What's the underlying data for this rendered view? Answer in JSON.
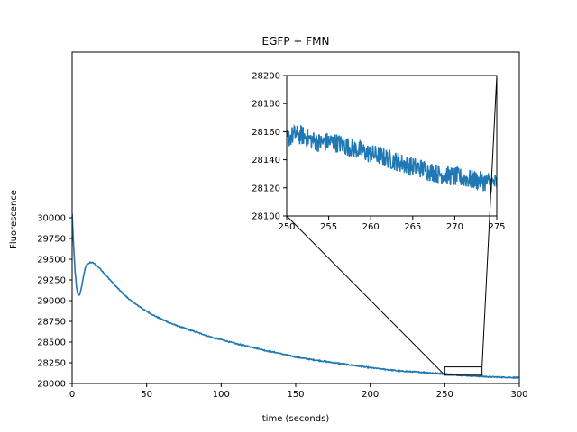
{
  "chart_data": [
    {
      "type": "line",
      "title": "EGFP + FMN",
      "xlabel": "time (seconds)",
      "ylabel": "Fluorescence",
      "xlim": [
        0,
        300
      ],
      "ylim": [
        28000,
        32000
      ],
      "xticks": [
        0,
        50,
        100,
        150,
        200,
        250,
        300
      ],
      "yticks": [
        28000,
        28250,
        28500,
        28750,
        29000,
        29250,
        29500,
        29750,
        30000
      ],
      "grid": false,
      "color": "#1f77b4",
      "series": [
        {
          "x": [
            0,
            1,
            2,
            3,
            4,
            5,
            6,
            7,
            8,
            9,
            10,
            11,
            12,
            13,
            14,
            15,
            16,
            18,
            20,
            22,
            25,
            28,
            30,
            35,
            40,
            45,
            50,
            55,
            60,
            65,
            70,
            75,
            80,
            85,
            90,
            95,
            100,
            105,
            110,
            115,
            120,
            125,
            128,
            130,
            135,
            140,
            145,
            150,
            160,
            170,
            180,
            190,
            200,
            210,
            220,
            230,
            240,
            250,
            260,
            270,
            280,
            290,
            300
          ],
          "y": [
            30050,
            29650,
            29350,
            29150,
            29070,
            29075,
            29130,
            29230,
            29330,
            29400,
            29435,
            29450,
            29458,
            29460,
            29455,
            29445,
            29430,
            29400,
            29360,
            29320,
            29260,
            29200,
            29160,
            29070,
            28990,
            28930,
            28870,
            28820,
            28775,
            28735,
            28700,
            28670,
            28640,
            28610,
            28580,
            28550,
            28530,
            28505,
            28480,
            28460,
            28440,
            28420,
            28405,
            28395,
            28380,
            28360,
            28340,
            28320,
            28290,
            28265,
            28240,
            28215,
            28190,
            28170,
            28150,
            28140,
            28130,
            28115,
            28100,
            28090,
            28080,
            28075,
            28070
          ]
        }
      ]
    },
    {
      "type": "line",
      "title": "",
      "xlabel": "",
      "ylabel": "",
      "xlim": [
        250,
        275
      ],
      "ylim": [
        28100,
        28200
      ],
      "xticks": [
        250,
        255,
        260,
        265,
        270,
        275
      ],
      "yticks": [
        28100,
        28120,
        28140,
        28160,
        28180,
        28200
      ],
      "grid": false,
      "color": "#1f77b4",
      "series": [
        {
          "x": [
            250,
            251,
            252,
            253,
            254,
            255,
            256,
            257,
            258,
            259,
            260,
            261,
            262,
            263,
            264,
            265,
            266,
            267,
            268,
            269,
            270,
            271,
            272,
            273,
            274,
            275
          ],
          "y": [
            28155,
            28158,
            28157,
            28154,
            28152,
            28153,
            28152,
            28150,
            28148,
            28146,
            28144,
            28143,
            28141,
            28139,
            28137,
            28135,
            28134,
            28132,
            28130,
            28129,
            28128,
            28127,
            28126,
            28125,
            28124,
            28123
          ]
        }
      ]
    }
  ]
}
